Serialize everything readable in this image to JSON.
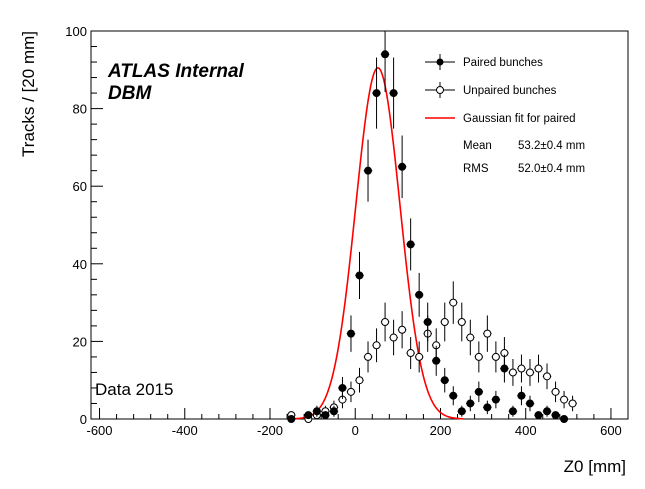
{
  "chart_data": {
    "type": "scatter",
    "xlabel": "Z0 [mm]",
    "ylabel": "Tracks / [20 mm]",
    "xlim": [
      -620,
      640
    ],
    "ylim": [
      0,
      100
    ],
    "xticks": [
      -600,
      -400,
      -200,
      0,
      200,
      400,
      600
    ],
    "yticks": [
      0,
      20,
      40,
      60,
      80,
      100
    ],
    "grid": false,
    "legend_position": "top-right",
    "experiment_label": "ATLAS Internal",
    "detector_label": "DBM",
    "dataset_label": "Data 2015",
    "fit": {
      "function": "gaussian",
      "amplitude": 90.5,
      "mean": 53.2,
      "sigma": 52.0
    },
    "stats": [
      {
        "name": "Mean",
        "value": "53.2±0.4 mm"
      },
      {
        "name": "RMS",
        "value": "52.0±0.4 mm"
      }
    ],
    "series": [
      {
        "name": "Paired bunches",
        "marker": "filled",
        "x": [
          -150,
          -110,
          -90,
          -70,
          -50,
          -30,
          -10,
          10,
          30,
          50,
          70,
          90,
          110,
          130,
          150,
          170,
          190,
          210,
          230,
          250,
          270,
          290,
          310,
          330,
          350,
          370,
          390,
          410,
          430,
          450,
          470,
          490
        ],
        "y": [
          0,
          1,
          2,
          1,
          2,
          8,
          22,
          37,
          64,
          84,
          94,
          84,
          65,
          45,
          32,
          25,
          15,
          10,
          6,
          2,
          4,
          7,
          3,
          5,
          13,
          2,
          6,
          4,
          1,
          2,
          1,
          0
        ]
      },
      {
        "name": "Unpaired bunches",
        "marker": "open",
        "x": [
          -150,
          -110,
          -90,
          -70,
          -50,
          -30,
          -10,
          10,
          30,
          50,
          70,
          90,
          110,
          130,
          150,
          170,
          190,
          210,
          230,
          250,
          270,
          290,
          310,
          330,
          350,
          370,
          390,
          410,
          430,
          450,
          470,
          490,
          510
        ],
        "y": [
          1,
          0,
          1,
          2,
          3,
          5,
          7,
          10,
          16,
          19,
          25,
          21,
          23,
          17,
          16,
          22,
          19,
          25,
          30,
          25,
          21,
          16,
          22,
          16,
          17,
          12,
          13,
          12,
          13,
          11,
          7,
          5,
          4
        ]
      },
      {
        "name": "Gaussian fit for paired",
        "marker": "line",
        "color": "#ff0000"
      }
    ]
  }
}
